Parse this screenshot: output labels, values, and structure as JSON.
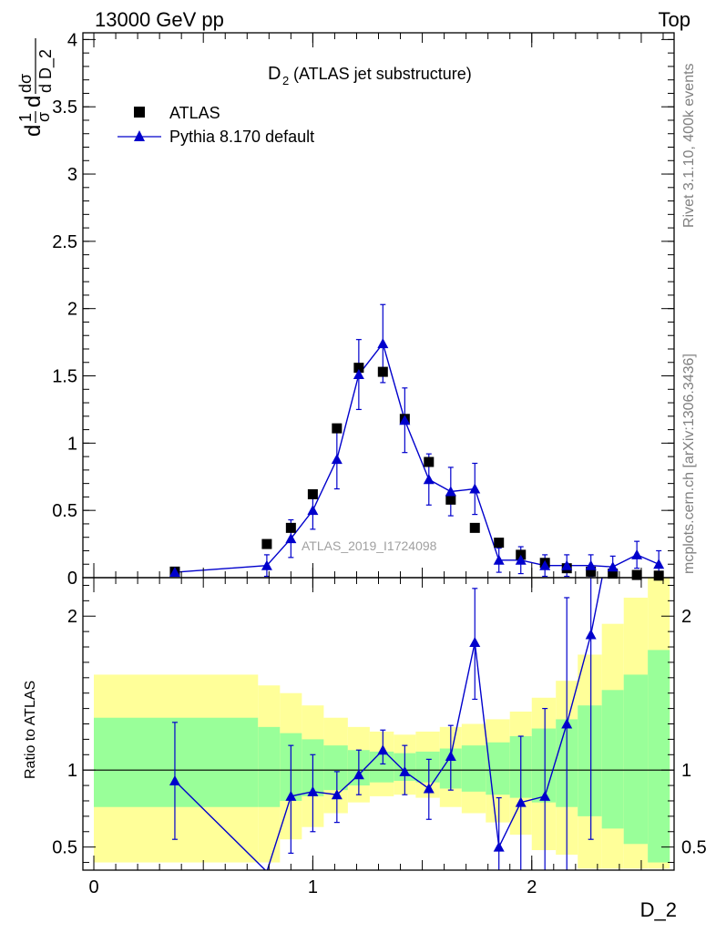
{
  "header": {
    "left": "13000 GeV pp",
    "right": "Top"
  },
  "side_labels": {
    "rivet": "Rivet 3.1.10,  400k events",
    "mcplots": "mcplots.cern.ch [arXiv:1306.3436]"
  },
  "colors": {
    "data": "#000000",
    "mc": "#0000cc",
    "band_inner": "#99ff99",
    "band_outer": "#ffff99"
  },
  "icons": {
    "data_marker": "filled-square-icon",
    "mc_marker": "filled-triangle-icon"
  },
  "chart_data": {
    "type": "scatter",
    "title_main": "D",
    "title_sub": "2",
    "title_rest": " (ATLAS jet substructure)",
    "watermark": "ATLAS_2019_I1724098",
    "ylabel": {
      "p1": "d",
      "p2": "1",
      "p3": "σ",
      "p4": "d",
      "p5": "dσ",
      "p6": "d D_2"
    },
    "xlabel": "D_2",
    "ratio_ylabel": "Ratio to ATLAS",
    "xlim": [
      -0.05,
      2.65
    ],
    "ylim": [
      0,
      4.05
    ],
    "ratio_ylim": [
      0.35,
      2.25
    ],
    "xticks": [
      "0",
      "1",
      "2"
    ],
    "xtick_values": [
      0,
      1,
      2
    ],
    "yticks": [
      "0",
      "0.5",
      "1",
      "1.5",
      "2",
      "2.5",
      "3",
      "3.5",
      "4"
    ],
    "ytick_values": [
      0,
      0.5,
      1,
      1.5,
      2,
      2.5,
      3,
      3.5,
      4
    ],
    "ratio_yticks": [
      "0.5",
      "1",
      "2"
    ],
    "ratio_ytick_values": [
      0.5,
      1,
      2
    ],
    "legend": {
      "data": "ATLAS",
      "mc": "Pythia 8.170 default",
      "position": "top-left"
    },
    "series": [
      {
        "name": "ATLAS",
        "x": [
          0.37,
          0.79,
          0.9,
          1.0,
          1.11,
          1.21,
          1.32,
          1.42,
          1.53,
          1.63,
          1.74,
          1.85,
          1.95,
          2.06,
          2.16,
          2.27,
          2.37,
          2.48,
          2.58
        ],
        "y": [
          0.045,
          0.25,
          0.37,
          0.62,
          1.11,
          1.56,
          1.53,
          1.18,
          0.86,
          0.58,
          0.37,
          0.26,
          0.17,
          0.11,
          0.07,
          0.045,
          0.03,
          0.02,
          0.015
        ]
      },
      {
        "name": "Pythia 8.170 default",
        "x": [
          0.37,
          0.79,
          0.9,
          1.0,
          1.11,
          1.21,
          1.32,
          1.42,
          1.53,
          1.63,
          1.74,
          1.85,
          1.95,
          2.06,
          2.16,
          2.27,
          2.37,
          2.48,
          2.58
        ],
        "y": [
          0.04,
          0.09,
          0.29,
          0.5,
          0.88,
          1.51,
          1.74,
          1.17,
          0.73,
          0.64,
          0.66,
          0.13,
          0.13,
          0.09,
          0.09,
          0.09,
          0.08,
          0.17,
          0.1
        ],
        "yerr": [
          0.02,
          0.08,
          0.14,
          0.14,
          0.22,
          0.26,
          0.29,
          0.24,
          0.19,
          0.18,
          0.19,
          0.09,
          0.1,
          0.08,
          0.08,
          0.08,
          0.08,
          0.1,
          0.1
        ]
      }
    ],
    "ratio": {
      "x": [
        0.37,
        0.79,
        0.9,
        1.0,
        1.11,
        1.21,
        1.32,
        1.42,
        1.53,
        1.63,
        1.74,
        1.85,
        1.95,
        2.06,
        2.16,
        2.27,
        2.37
      ],
      "y": [
        0.93,
        0.34,
        0.83,
        0.86,
        0.84,
        0.97,
        1.13,
        0.99,
        0.88,
        1.09,
        1.83,
        0.5,
        0.79,
        0.83,
        1.3,
        1.88,
        2.6
      ],
      "lo": [
        0.55,
        0.34,
        0.46,
        0.6,
        0.66,
        0.84,
        1.04,
        0.84,
        0.68,
        0.87,
        1.46,
        0.3,
        0.3,
        0.3,
        0.3,
        0.55,
        2.6
      ],
      "hi": [
        1.31,
        0.34,
        1.16,
        1.1,
        0.99,
        1.13,
        1.26,
        1.16,
        1.07,
        1.29,
        2.18,
        0.82,
        1.22,
        1.4,
        2.12,
        2.6,
        2.6
      ]
    },
    "band": {
      "edges": [
        0.0,
        0.75,
        0.85,
        0.95,
        1.05,
        1.16,
        1.26,
        1.37,
        1.47,
        1.58,
        1.68,
        1.79,
        1.9,
        2.0,
        2.11,
        2.21,
        2.32,
        2.42,
        2.53,
        2.63
      ],
      "inner_lo": [
        0.76,
        0.76,
        0.8,
        0.83,
        0.87,
        0.9,
        0.92,
        0.93,
        0.92,
        0.88,
        0.86,
        0.84,
        0.82,
        0.79,
        0.76,
        0.7,
        0.62,
        0.52,
        0.4
      ],
      "inner_hi": [
        1.34,
        1.28,
        1.24,
        1.2,
        1.16,
        1.13,
        1.12,
        1.11,
        1.12,
        1.14,
        1.16,
        1.18,
        1.22,
        1.27,
        1.33,
        1.42,
        1.52,
        1.62,
        1.78
      ],
      "outer_lo": [
        0.4,
        0.4,
        0.55,
        0.63,
        0.72,
        0.79,
        0.83,
        0.84,
        0.82,
        0.76,
        0.72,
        0.66,
        0.58,
        0.48,
        0.45,
        0.36,
        0.36,
        0.36,
        0.36
      ],
      "outer_hi": [
        1.62,
        1.55,
        1.5,
        1.42,
        1.34,
        1.28,
        1.25,
        1.23,
        1.25,
        1.28,
        1.3,
        1.33,
        1.38,
        1.47,
        1.58,
        1.75,
        1.95,
        2.12,
        2.3
      ]
    }
  }
}
